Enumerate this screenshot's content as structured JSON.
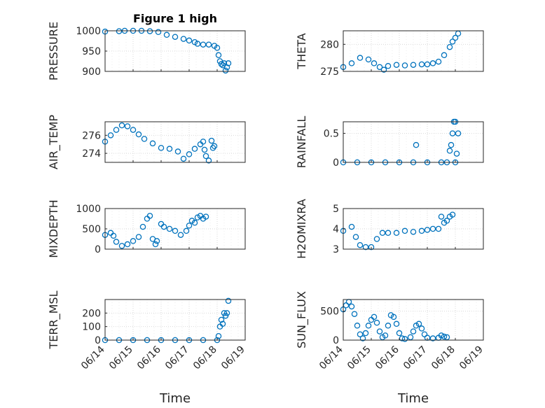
{
  "chart_data": [
    {
      "type": "scatter",
      "title": "Figure 1 high",
      "ylabel": "PRESSURE",
      "ylim": [
        900,
        1000
      ],
      "yticks": [
        900,
        950,
        1000
      ],
      "xlim": [
        "06/14",
        "06/19"
      ],
      "xticks": [
        "06/14",
        "06/15",
        "06/16",
        "06/17",
        "06/18",
        "06/19"
      ],
      "xlabel": "",
      "grid": true,
      "series": [
        {
          "points": [
            [
              0.0,
              998
            ],
            [
              0.5,
              999
            ],
            [
              0.7,
              1000
            ],
            [
              1.0,
              1000
            ],
            [
              1.3,
              1000
            ],
            [
              1.6,
              999
            ],
            [
              1.9,
              997
            ],
            [
              2.2,
              990
            ],
            [
              2.5,
              985
            ],
            [
              2.8,
              980
            ],
            [
              3.0,
              976
            ],
            [
              3.2,
              972
            ],
            [
              3.3,
              968
            ],
            [
              3.5,
              966
            ],
            [
              3.7,
              966
            ],
            [
              3.9,
              963
            ],
            [
              4.0,
              958
            ],
            [
              4.05,
              940
            ],
            [
              4.1,
              925
            ],
            [
              4.15,
              918
            ],
            [
              4.2,
              915
            ],
            [
              4.25,
              920
            ],
            [
              4.3,
              902
            ],
            [
              4.35,
              910
            ],
            [
              4.4,
              920
            ]
          ]
        }
      ]
    },
    {
      "type": "scatter",
      "title": "",
      "ylabel": "THETA",
      "ylim": [
        275,
        282.5
      ],
      "yticks": [
        275,
        280
      ],
      "xlim": [
        "06/14",
        "06/19"
      ],
      "xticks": [
        "06/14",
        "06/15",
        "06/16",
        "06/17",
        "06/18",
        "06/19"
      ],
      "xlabel": "",
      "grid": true,
      "series": [
        {
          "points": [
            [
              0.0,
              275.8
            ],
            [
              0.3,
              276.5
            ],
            [
              0.6,
              277.5
            ],
            [
              0.9,
              277.2
            ],
            [
              1.1,
              276.5
            ],
            [
              1.3,
              275.8
            ],
            [
              1.45,
              275.3
            ],
            [
              1.6,
              276.0
            ],
            [
              1.9,
              276.2
            ],
            [
              2.2,
              276.1
            ],
            [
              2.5,
              276.2
            ],
            [
              2.8,
              276.3
            ],
            [
              3.0,
              276.3
            ],
            [
              3.2,
              276.5
            ],
            [
              3.4,
              276.8
            ],
            [
              3.6,
              278.0
            ],
            [
              3.8,
              279.5
            ],
            [
              3.9,
              280.5
            ],
            [
              4.0,
              281.2
            ],
            [
              4.1,
              282.0
            ]
          ]
        }
      ]
    },
    {
      "type": "scatter",
      "title": "",
      "ylabel": "AIR_TEMP",
      "ylim": [
        273,
        277.5
      ],
      "yticks": [
        274,
        276
      ],
      "xlim": [
        "06/14",
        "06/19"
      ],
      "xticks": [
        "06/14",
        "06/15",
        "06/16",
        "06/17",
        "06/18",
        "06/19"
      ],
      "xlabel": "",
      "grid": true,
      "series": [
        {
          "points": [
            [
              0.0,
              275.3
            ],
            [
              0.2,
              276.0
            ],
            [
              0.4,
              276.6
            ],
            [
              0.6,
              277.1
            ],
            [
              0.8,
              277.0
            ],
            [
              1.0,
              276.6
            ],
            [
              1.2,
              276.1
            ],
            [
              1.4,
              275.6
            ],
            [
              1.7,
              275.1
            ],
            [
              2.0,
              274.6
            ],
            [
              2.3,
              274.5
            ],
            [
              2.6,
              274.2
            ],
            [
              2.8,
              273.4
            ],
            [
              3.0,
              273.9
            ],
            [
              3.2,
              274.5
            ],
            [
              3.4,
              275.0
            ],
            [
              3.5,
              275.3
            ],
            [
              3.55,
              274.4
            ],
            [
              3.6,
              273.7
            ],
            [
              3.7,
              273.2
            ],
            [
              3.8,
              275.4
            ],
            [
              3.85,
              274.6
            ],
            [
              3.9,
              274.8
            ]
          ]
        }
      ]
    },
    {
      "type": "scatter",
      "title": "",
      "ylabel": "RAINFALL",
      "ylim": [
        0,
        0.7
      ],
      "yticks": [
        0,
        0.5
      ],
      "xlim": [
        "06/14",
        "06/19"
      ],
      "xticks": [
        "06/14",
        "06/15",
        "06/16",
        "06/17",
        "06/18",
        "06/19"
      ],
      "xlabel": "",
      "grid": true,
      "series": [
        {
          "points": [
            [
              0.0,
              0
            ],
            [
              0.5,
              0
            ],
            [
              1.0,
              0
            ],
            [
              1.5,
              0
            ],
            [
              2.0,
              0
            ],
            [
              2.5,
              0
            ],
            [
              3.0,
              0
            ],
            [
              3.5,
              0
            ],
            [
              3.7,
              0
            ],
            [
              2.6,
              0.3
            ],
            [
              3.8,
              0.2
            ],
            [
              3.85,
              0.3
            ],
            [
              3.9,
              0.5
            ],
            [
              3.95,
              0.7
            ],
            [
              4.0,
              0.7
            ],
            [
              4.05,
              0.15
            ],
            [
              4.1,
              0.5
            ],
            [
              4.0,
              0.0
            ]
          ]
        }
      ]
    },
    {
      "type": "scatter",
      "title": "",
      "ylabel": "MIXDEPTH",
      "ylim": [
        0,
        1000
      ],
      "yticks": [
        0,
        500,
        1000
      ],
      "xlim": [
        "06/14",
        "06/19"
      ],
      "xticks": [
        "06/14",
        "06/15",
        "06/16",
        "06/17",
        "06/18",
        "06/19"
      ],
      "xlabel": "",
      "grid": true,
      "series": [
        {
          "points": [
            [
              0.0,
              350
            ],
            [
              0.2,
              400
            ],
            [
              0.3,
              330
            ],
            [
              0.4,
              180
            ],
            [
              0.6,
              80
            ],
            [
              0.8,
              120
            ],
            [
              1.0,
              200
            ],
            [
              1.2,
              300
            ],
            [
              1.35,
              550
            ],
            [
              1.5,
              750
            ],
            [
              1.6,
              820
            ],
            [
              1.7,
              250
            ],
            [
              1.8,
              120
            ],
            [
              1.85,
              200
            ],
            [
              2.0,
              620
            ],
            [
              2.1,
              550
            ],
            [
              2.3,
              500
            ],
            [
              2.5,
              450
            ],
            [
              2.7,
              350
            ],
            [
              2.9,
              450
            ],
            [
              3.0,
              580
            ],
            [
              3.1,
              700
            ],
            [
              3.2,
              650
            ],
            [
              3.3,
              780
            ],
            [
              3.4,
              820
            ],
            [
              3.5,
              750
            ],
            [
              3.6,
              800
            ]
          ]
        }
      ]
    },
    {
      "type": "scatter",
      "title": "",
      "ylabel": "H2OMIXRA",
      "ylim": [
        3,
        5
      ],
      "yticks": [
        3,
        4,
        5
      ],
      "xlim": [
        "06/14",
        "06/19"
      ],
      "xticks": [
        "06/14",
        "06/15",
        "06/16",
        "06/17",
        "06/18",
        "06/19"
      ],
      "xlabel": "",
      "grid": true,
      "series": [
        {
          "points": [
            [
              0.0,
              3.9
            ],
            [
              0.3,
              4.1
            ],
            [
              0.45,
              3.6
            ],
            [
              0.6,
              3.2
            ],
            [
              0.8,
              3.1
            ],
            [
              1.0,
              3.1
            ],
            [
              1.2,
              3.5
            ],
            [
              1.4,
              3.8
            ],
            [
              1.6,
              3.8
            ],
            [
              1.9,
              3.8
            ],
            [
              2.2,
              3.9
            ],
            [
              2.5,
              3.85
            ],
            [
              2.8,
              3.9
            ],
            [
              3.0,
              3.95
            ],
            [
              3.2,
              4.0
            ],
            [
              3.4,
              4.0
            ],
            [
              3.5,
              4.6
            ],
            [
              3.6,
              4.3
            ],
            [
              3.7,
              4.4
            ],
            [
              3.8,
              4.6
            ],
            [
              3.9,
              4.7
            ]
          ]
        }
      ]
    },
    {
      "type": "scatter",
      "title": "",
      "ylabel": "TERR_MSL",
      "ylim": [
        0,
        300
      ],
      "yticks": [
        0,
        100,
        200
      ],
      "xlim": [
        "06/14",
        "06/19"
      ],
      "xticks": [
        "06/14",
        "06/15",
        "06/16",
        "06/17",
        "06/18",
        "06/19"
      ],
      "xlabel": "Time",
      "grid": true,
      "series": [
        {
          "points": [
            [
              0.0,
              0
            ],
            [
              0.5,
              0
            ],
            [
              1.0,
              0
            ],
            [
              1.5,
              0
            ],
            [
              2.0,
              0
            ],
            [
              2.5,
              0
            ],
            [
              3.0,
              0
            ],
            [
              3.5,
              0
            ],
            [
              4.0,
              0
            ],
            [
              4.05,
              30
            ],
            [
              4.1,
              100
            ],
            [
              4.15,
              150
            ],
            [
              4.2,
              120
            ],
            [
              4.25,
              200
            ],
            [
              4.3,
              180
            ],
            [
              4.35,
              200
            ],
            [
              4.4,
              290
            ]
          ]
        }
      ]
    },
    {
      "type": "scatter",
      "title": "",
      "ylabel": "SUN_FLUX",
      "ylim": [
        0,
        700
      ],
      "yticks": [
        0,
        500
      ],
      "xlim": [
        "06/14",
        "06/19"
      ],
      "xticks": [
        "06/14",
        "06/15",
        "06/16",
        "06/17",
        "06/18",
        "06/19"
      ],
      "xlabel": "Time",
      "grid": true,
      "series": [
        {
          "points": [
            [
              0.0,
              530
            ],
            [
              0.1,
              600
            ],
            [
              0.2,
              660
            ],
            [
              0.3,
              580
            ],
            [
              0.4,
              450
            ],
            [
              0.5,
              250
            ],
            [
              0.6,
              100
            ],
            [
              0.7,
              30
            ],
            [
              0.8,
              120
            ],
            [
              0.9,
              250
            ],
            [
              1.0,
              350
            ],
            [
              1.1,
              400
            ],
            [
              1.2,
              300
            ],
            [
              1.3,
              150
            ],
            [
              1.4,
              50
            ],
            [
              1.5,
              80
            ],
            [
              1.6,
              250
            ],
            [
              1.7,
              430
            ],
            [
              1.8,
              400
            ],
            [
              1.9,
              280
            ],
            [
              2.0,
              120
            ],
            [
              2.1,
              30
            ],
            [
              2.2,
              20
            ],
            [
              2.4,
              50
            ],
            [
              2.5,
              150
            ],
            [
              2.6,
              250
            ],
            [
              2.7,
              280
            ],
            [
              2.8,
              200
            ],
            [
              2.9,
              100
            ],
            [
              3.0,
              40
            ],
            [
              3.2,
              30
            ],
            [
              3.4,
              40
            ],
            [
              3.5,
              80
            ],
            [
              3.6,
              60
            ],
            [
              3.7,
              50
            ]
          ]
        }
      ]
    }
  ],
  "colors": {
    "marker": "#0072BD",
    "axis": "#262626",
    "grid": "#d9d9d9"
  }
}
